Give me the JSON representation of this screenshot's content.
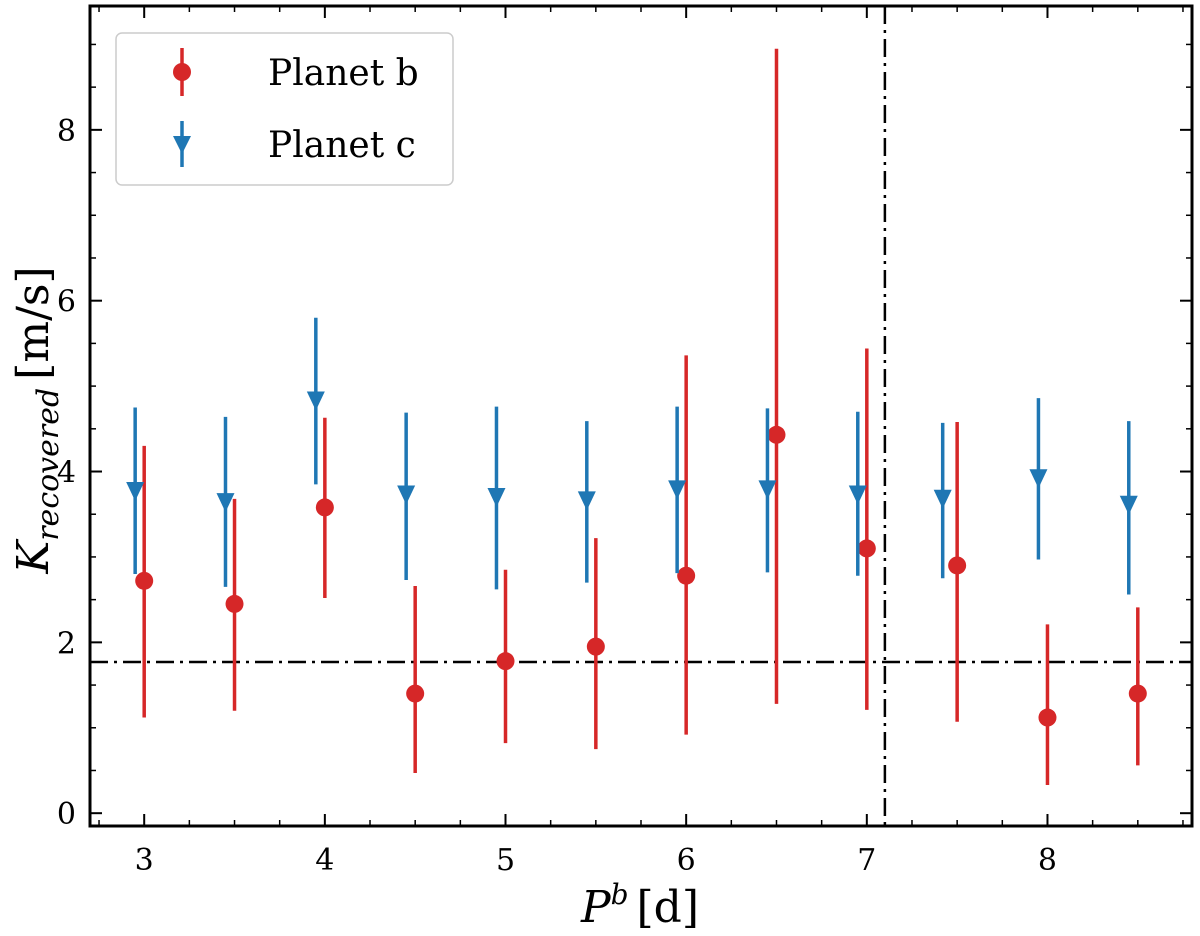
{
  "chart_data": {
    "type": "scatter",
    "title": "",
    "xlabel": "P^b [d]",
    "xlabel_base": "P",
    "xlabel_sup": "b",
    "xlabel_unit": "[d]",
    "ylabel": "K_recovered [m/s]",
    "ylabel_base": "K",
    "ylabel_sub": "recovered",
    "ylabel_unit": "[m/s]",
    "xlim": [
      2.7,
      8.8
    ],
    "ylim": [
      -0.15,
      9.45
    ],
    "xticks": [
      3,
      4,
      5,
      6,
      7,
      8
    ],
    "yticks": [
      0,
      2,
      4,
      6,
      8
    ],
    "legend_position": "top-left",
    "threshold_line_y": 1.77,
    "threshold_line_x": 7.1,
    "series": [
      {
        "name": "Planet b",
        "marker": "circle",
        "color": "#d62728",
        "points": [
          {
            "x": 3.0,
            "y": 2.72,
            "lo": 1.12,
            "hi": 4.3
          },
          {
            "x": 3.5,
            "y": 2.45,
            "lo": 1.2,
            "hi": 3.68
          },
          {
            "x": 4.0,
            "y": 3.58,
            "lo": 2.52,
            "hi": 4.63
          },
          {
            "x": 4.5,
            "y": 1.4,
            "lo": 0.47,
            "hi": 2.66
          },
          {
            "x": 5.0,
            "y": 1.78,
            "lo": 0.82,
            "hi": 2.85
          },
          {
            "x": 5.5,
            "y": 1.95,
            "lo": 0.75,
            "hi": 3.22
          },
          {
            "x": 6.0,
            "y": 2.78,
            "lo": 0.92,
            "hi": 5.36
          },
          {
            "x": 6.5,
            "y": 4.43,
            "lo": 1.28,
            "hi": 8.95
          },
          {
            "x": 7.0,
            "y": 3.1,
            "lo": 1.21,
            "hi": 5.44
          },
          {
            "x": 7.5,
            "y": 2.9,
            "lo": 1.07,
            "hi": 4.58
          },
          {
            "x": 8.0,
            "y": 1.12,
            "lo": 0.33,
            "hi": 2.21
          },
          {
            "x": 8.5,
            "y": 1.4,
            "lo": 0.56,
            "hi": 2.41
          }
        ]
      },
      {
        "name": "Planet c",
        "marker": "triangle-down",
        "color": "#1f77b4",
        "points": [
          {
            "x": 2.95,
            "y": 3.76,
            "lo": 2.8,
            "hi": 4.75
          },
          {
            "x": 3.45,
            "y": 3.63,
            "lo": 2.65,
            "hi": 4.64
          },
          {
            "x": 3.95,
            "y": 4.82,
            "lo": 3.85,
            "hi": 5.8
          },
          {
            "x": 4.45,
            "y": 3.72,
            "lo": 2.73,
            "hi": 4.69
          },
          {
            "x": 4.95,
            "y": 3.69,
            "lo": 2.62,
            "hi": 4.76
          },
          {
            "x": 5.45,
            "y": 3.65,
            "lo": 2.7,
            "hi": 4.59
          },
          {
            "x": 5.95,
            "y": 3.78,
            "lo": 2.81,
            "hi": 4.76
          },
          {
            "x": 6.45,
            "y": 3.78,
            "lo": 2.82,
            "hi": 4.74
          },
          {
            "x": 6.95,
            "y": 3.72,
            "lo": 2.78,
            "hi": 4.7
          },
          {
            "x": 7.42,
            "y": 3.67,
            "lo": 2.75,
            "hi": 4.57
          },
          {
            "x": 7.95,
            "y": 3.91,
            "lo": 2.97,
            "hi": 4.86
          },
          {
            "x": 8.45,
            "y": 3.6,
            "lo": 2.56,
            "hi": 4.59
          }
        ]
      }
    ]
  }
}
